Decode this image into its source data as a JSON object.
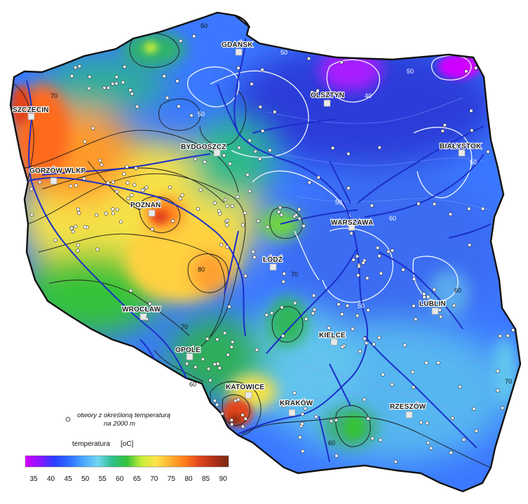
{
  "cities": [
    {
      "id": "gdansk",
      "name": "GDAŃSK"
    },
    {
      "id": "olsztyn",
      "name": "OLSZTYN"
    },
    {
      "id": "szczecin",
      "name": "SZCZECIN"
    },
    {
      "id": "bydgoszcz",
      "name": "BYDGOSZCZ"
    },
    {
      "id": "bialystok",
      "name": "BIAŁYSTOK"
    },
    {
      "id": "gorzow",
      "name": "GORZÓW WLKP"
    },
    {
      "id": "poznan",
      "name": "POZNAŃ"
    },
    {
      "id": "warszawa",
      "name": "WARSZAWA"
    },
    {
      "id": "lodz",
      "name": "ŁÓDŹ"
    },
    {
      "id": "lublin",
      "name": "LUBLIN"
    },
    {
      "id": "wroclaw",
      "name": "WROCŁAW"
    },
    {
      "id": "kielce",
      "name": "KIELCE"
    },
    {
      "id": "opole",
      "name": "OPOLE"
    },
    {
      "id": "katowice",
      "name": "KATOWICE"
    },
    {
      "id": "krakow",
      "name": "KRAKÓW"
    },
    {
      "id": "rzeszow",
      "name": "RZESZÓW"
    }
  ],
  "isoline_labels": [
    "60",
    "50",
    "50",
    "40",
    "70",
    "50",
    "50",
    "50",
    "60",
    "80",
    "70",
    "50",
    "60",
    "70",
    "60",
    "60",
    "70"
  ],
  "legend": {
    "points_label_line1": "otwory z określoną temperaturą",
    "points_label_line2": "na 2000 m",
    "title": "temperatura",
    "unit": "[oC]",
    "scale_ticks": [
      "35",
      "40",
      "45",
      "50",
      "55",
      "60",
      "65",
      "70",
      "75",
      "80",
      "85",
      "90"
    ],
    "scale_colors": [
      "#d400ff",
      "#8a14ff",
      "#2a3cff",
      "#2d6cff",
      "#4aa8ff",
      "#6fd6f2",
      "#2ec08a",
      "#34c23a",
      "#c8ee3a",
      "#ffe34a",
      "#ffb030",
      "#ff7a1a",
      "#e0441e",
      "#b03018",
      "#7a2a10"
    ]
  },
  "colors": {
    "border": "#111111",
    "rivers": "#1c2fc9",
    "isoline_dark": "#1a1a1a",
    "isoline_light": "#f2f6ff"
  }
}
